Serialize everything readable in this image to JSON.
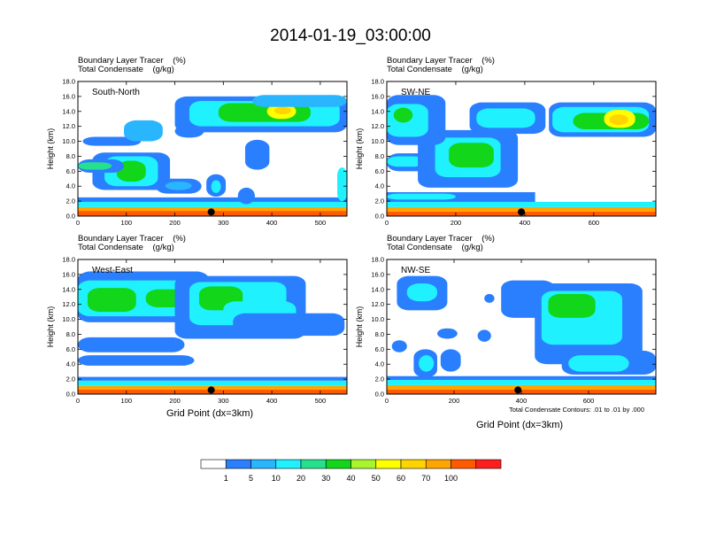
{
  "title": "2014-01-19_03:00:00",
  "field_labels": [
    "Boundary Layer Tracer    (%)",
    "Total Condensate    (g/kg)"
  ],
  "x_axis_title": "Grid Point (dx=3km)",
  "y_axis_title": "Height (km)",
  "contour_note": "Total Condensate Contours: .01 to .01 by .000",
  "colors": [
    "#ffffff",
    "#2a7fff",
    "#29b6ff",
    "#1ff1ff",
    "#25e08c",
    "#11d61a",
    "#a8f52b",
    "#ffff00",
    "#ffd400",
    "#ffa500",
    "#ff5a00",
    "#ff1e1e"
  ],
  "colorbar_labels": [
    "1",
    "5",
    "10",
    "20",
    "30",
    "40",
    "50",
    "60",
    "70",
    "100"
  ],
  "chart_data": [
    {
      "type": "heatmap",
      "name": "South-North",
      "xlim": [
        0,
        555
      ],
      "ylim": [
        0,
        18
      ],
      "xticks": [
        0,
        100,
        200,
        300,
        400,
        500
      ],
      "yticks": [
        0,
        2,
        4,
        6,
        8,
        10,
        12,
        14,
        16,
        18
      ],
      "marker_x": 275,
      "blobs": [
        {
          "x": [
            0,
            555
          ],
          "y": [
            0.0,
            0.7
          ],
          "level": 10
        },
        {
          "x": [
            0,
            555
          ],
          "y": [
            0.7,
            1.2
          ],
          "level": 9
        },
        {
          "x": [
            0,
            555
          ],
          "y": [
            1.2,
            1.9
          ],
          "level": 3
        },
        {
          "x": [
            0,
            555
          ],
          "y": [
            1.9,
            2.5
          ],
          "level": 1
        },
        {
          "x": [
            30,
            190
          ],
          "y": [
            3.5,
            8.5
          ],
          "level": 1
        },
        {
          "x": [
            55,
            165
          ],
          "y": [
            4.0,
            8.0
          ],
          "level": 3
        },
        {
          "x": [
            80,
            140
          ],
          "y": [
            4.6,
            7.4
          ],
          "level": 5
        },
        {
          "x": [
            0,
            95
          ],
          "y": [
            5.8,
            7.6
          ],
          "level": 1
        },
        {
          "x": [
            0,
            70
          ],
          "y": [
            6.2,
            7.2
          ],
          "level": 4
        },
        {
          "x": [
            160,
            255
          ],
          "y": [
            3.0,
            5.0
          ],
          "level": 1
        },
        {
          "x": [
            180,
            235
          ],
          "y": [
            3.5,
            4.6
          ],
          "level": 2
        },
        {
          "x": [
            10,
            130
          ],
          "y": [
            9.4,
            10.6
          ],
          "level": 1
        },
        {
          "x": [
            95,
            175
          ],
          "y": [
            10.0,
            12.8
          ],
          "level": 2
        },
        {
          "x": [
            200,
            260
          ],
          "y": [
            10.5,
            12.2
          ],
          "level": 1
        },
        {
          "x": [
            200,
            555
          ],
          "y": [
            11.2,
            16.0
          ],
          "level": 1
        },
        {
          "x": [
            230,
            540
          ],
          "y": [
            12.0,
            15.4
          ],
          "level": 3
        },
        {
          "x": [
            290,
            480
          ],
          "y": [
            12.6,
            15.1
          ],
          "level": 5
        },
        {
          "x": [
            390,
            450
          ],
          "y": [
            13.0,
            15.0
          ],
          "level": 7
        },
        {
          "x": [
            405,
            440
          ],
          "y": [
            13.6,
            14.6
          ],
          "level": 8
        },
        {
          "x": [
            360,
            555
          ],
          "y": [
            14.6,
            16.2
          ],
          "level": 2
        },
        {
          "x": [
            345,
            395
          ],
          "y": [
            6.2,
            10.2
          ],
          "level": 1
        },
        {
          "x": [
            265,
            305
          ],
          "y": [
            2.6,
            5.6
          ],
          "level": 1
        },
        {
          "x": [
            275,
            295
          ],
          "y": [
            3.1,
            4.8
          ],
          "level": 3
        },
        {
          "x": [
            330,
            365
          ],
          "y": [
            1.6,
            3.8
          ],
          "level": 1
        },
        {
          "x": [
            535,
            555
          ],
          "y": [
            2.0,
            6.5
          ],
          "level": 3
        }
      ]
    },
    {
      "type": "heatmap",
      "name": "SW-NE",
      "xlim": [
        0,
        780
      ],
      "ylim": [
        0,
        18
      ],
      "xticks": [
        0,
        200,
        400,
        600
      ],
      "yticks": [
        0,
        2,
        4,
        6,
        8,
        10,
        12,
        14,
        16,
        18
      ],
      "marker_x": 390,
      "blobs": [
        {
          "x": [
            0,
            780
          ],
          "y": [
            0.0,
            0.6
          ],
          "level": 10
        },
        {
          "x": [
            0,
            780
          ],
          "y": [
            0.6,
            1.2
          ],
          "level": 9
        },
        {
          "x": [
            0,
            780
          ],
          "y": [
            1.2,
            1.9
          ],
          "level": 3
        },
        {
          "x": [
            0,
            430
          ],
          "y": [
            1.9,
            3.2
          ],
          "level": 1
        },
        {
          "x": [
            0,
            200
          ],
          "y": [
            2.2,
            3.0
          ],
          "level": 3
        },
        {
          "x": [
            0,
            160
          ],
          "y": [
            6.0,
            8.4
          ],
          "level": 1
        },
        {
          "x": [
            0,
            110
          ],
          "y": [
            6.6,
            8.0
          ],
          "level": 3
        },
        {
          "x": [
            90,
            380
          ],
          "y": [
            3.8,
            11.5
          ],
          "level": 1
        },
        {
          "x": [
            140,
            330
          ],
          "y": [
            5.2,
            10.5
          ],
          "level": 3
        },
        {
          "x": [
            180,
            310
          ],
          "y": [
            6.5,
            9.8
          ],
          "level": 5
        },
        {
          "x": [
            0,
            170
          ],
          "y": [
            9.5,
            16.2
          ],
          "level": 1
        },
        {
          "x": [
            0,
            120
          ],
          "y": [
            10.6,
            15.0
          ],
          "level": 3
        },
        {
          "x": [
            20,
            75
          ],
          "y": [
            12.5,
            14.5
          ],
          "level": 5
        },
        {
          "x": [
            240,
            460
          ],
          "y": [
            11.0,
            15.2
          ],
          "level": 1
        },
        {
          "x": [
            260,
            430
          ],
          "y": [
            11.8,
            14.4
          ],
          "level": 3
        },
        {
          "x": [
            470,
            780
          ],
          "y": [
            10.6,
            15.2
          ],
          "level": 1
        },
        {
          "x": [
            480,
            760
          ],
          "y": [
            11.2,
            14.6
          ],
          "level": 3
        },
        {
          "x": [
            540,
            760
          ],
          "y": [
            11.6,
            13.8
          ],
          "level": 5
        },
        {
          "x": [
            630,
            720
          ],
          "y": [
            11.8,
            14.2
          ],
          "level": 7
        },
        {
          "x": [
            645,
            700
          ],
          "y": [
            12.2,
            13.6
          ],
          "level": 8
        }
      ]
    },
    {
      "type": "heatmap",
      "name": "West-East",
      "xlim": [
        0,
        555
      ],
      "ylim": [
        0,
        18
      ],
      "xticks": [
        0,
        100,
        200,
        300,
        400,
        500
      ],
      "yticks": [
        0,
        2,
        4,
        6,
        8,
        10,
        12,
        14,
        16,
        18
      ],
      "marker_x": 275,
      "blobs": [
        {
          "x": [
            0,
            555
          ],
          "y": [
            0.0,
            0.6
          ],
          "level": 10
        },
        {
          "x": [
            0,
            555
          ],
          "y": [
            0.6,
            1.1
          ],
          "level": 9
        },
        {
          "x": [
            0,
            555
          ],
          "y": [
            1.1,
            1.8
          ],
          "level": 3
        },
        {
          "x": [
            0,
            555
          ],
          "y": [
            1.8,
            2.3
          ],
          "level": 1
        },
        {
          "x": [
            0,
            240
          ],
          "y": [
            3.8,
            5.2
          ],
          "level": 1
        },
        {
          "x": [
            0,
            220
          ],
          "y": [
            5.6,
            7.6
          ],
          "level": 1
        },
        {
          "x": [
            0,
            270
          ],
          "y": [
            9.6,
            16.4
          ],
          "level": 1
        },
        {
          "x": [
            0,
            260
          ],
          "y": [
            10.4,
            15.2
          ],
          "level": 3
        },
        {
          "x": [
            20,
            120
          ],
          "y": [
            11.0,
            14.2
          ],
          "level": 5
        },
        {
          "x": [
            140,
            250
          ],
          "y": [
            11.6,
            14.0
          ],
          "level": 5
        },
        {
          "x": [
            200,
            470
          ],
          "y": [
            7.4,
            15.8
          ],
          "level": 1
        },
        {
          "x": [
            230,
            430
          ],
          "y": [
            9.2,
            15.0
          ],
          "level": 3
        },
        {
          "x": [
            250,
            340
          ],
          "y": [
            11.2,
            14.4
          ],
          "level": 5
        },
        {
          "x": [
            300,
            450
          ],
          "y": [
            9.4,
            12.4
          ],
          "level": 3
        },
        {
          "x": [
            320,
            550
          ],
          "y": [
            7.8,
            10.8
          ],
          "level": 1
        }
      ]
    },
    {
      "type": "heatmap",
      "name": "NW-SE",
      "xlim": [
        0,
        800
      ],
      "ylim": [
        0,
        18
      ],
      "xticks": [
        0,
        200,
        400,
        600
      ],
      "yticks": [
        0,
        2,
        4,
        6,
        8,
        10,
        12,
        14,
        16,
        18
      ],
      "marker_x": 390,
      "blobs": [
        {
          "x": [
            0,
            800
          ],
          "y": [
            0.0,
            0.6
          ],
          "level": 10
        },
        {
          "x": [
            0,
            800
          ],
          "y": [
            0.6,
            1.2
          ],
          "level": 9
        },
        {
          "x": [
            0,
            800
          ],
          "y": [
            1.2,
            1.9
          ],
          "level": 3
        },
        {
          "x": [
            0,
            800
          ],
          "y": [
            1.9,
            2.4
          ],
          "level": 1
        },
        {
          "x": [
            30,
            180
          ],
          "y": [
            11.2,
            15.8
          ],
          "level": 1
        },
        {
          "x": [
            60,
            150
          ],
          "y": [
            12.4,
            14.8
          ],
          "level": 3
        },
        {
          "x": [
            15,
            60
          ],
          "y": [
            5.6,
            7.2
          ],
          "level": 1
        },
        {
          "x": [
            80,
            150
          ],
          "y": [
            2.2,
            6.0
          ],
          "level": 1
        },
        {
          "x": [
            95,
            140
          ],
          "y": [
            3.0,
            5.2
          ],
          "level": 3
        },
        {
          "x": [
            160,
            220
          ],
          "y": [
            3.0,
            6.0
          ],
          "level": 1
        },
        {
          "x": [
            150,
            210
          ],
          "y": [
            7.4,
            8.8
          ],
          "level": 1
        },
        {
          "x": [
            270,
            310
          ],
          "y": [
            7.0,
            8.6
          ],
          "level": 1
        },
        {
          "x": [
            290,
            320
          ],
          "y": [
            12.2,
            13.4
          ],
          "level": 1
        },
        {
          "x": [
            340,
            500
          ],
          "y": [
            10.2,
            15.2
          ],
          "level": 1
        },
        {
          "x": [
            440,
            760
          ],
          "y": [
            4.0,
            14.8
          ],
          "level": 1
        },
        {
          "x": [
            460,
            700
          ],
          "y": [
            6.6,
            13.8
          ],
          "level": 3
        },
        {
          "x": [
            480,
            620
          ],
          "y": [
            10.2,
            13.4
          ],
          "level": 5
        },
        {
          "x": [
            520,
            800
          ],
          "y": [
            2.6,
            5.8
          ],
          "level": 1
        },
        {
          "x": [
            540,
            720
          ],
          "y": [
            3.0,
            5.2
          ],
          "level": 3
        }
      ]
    }
  ]
}
